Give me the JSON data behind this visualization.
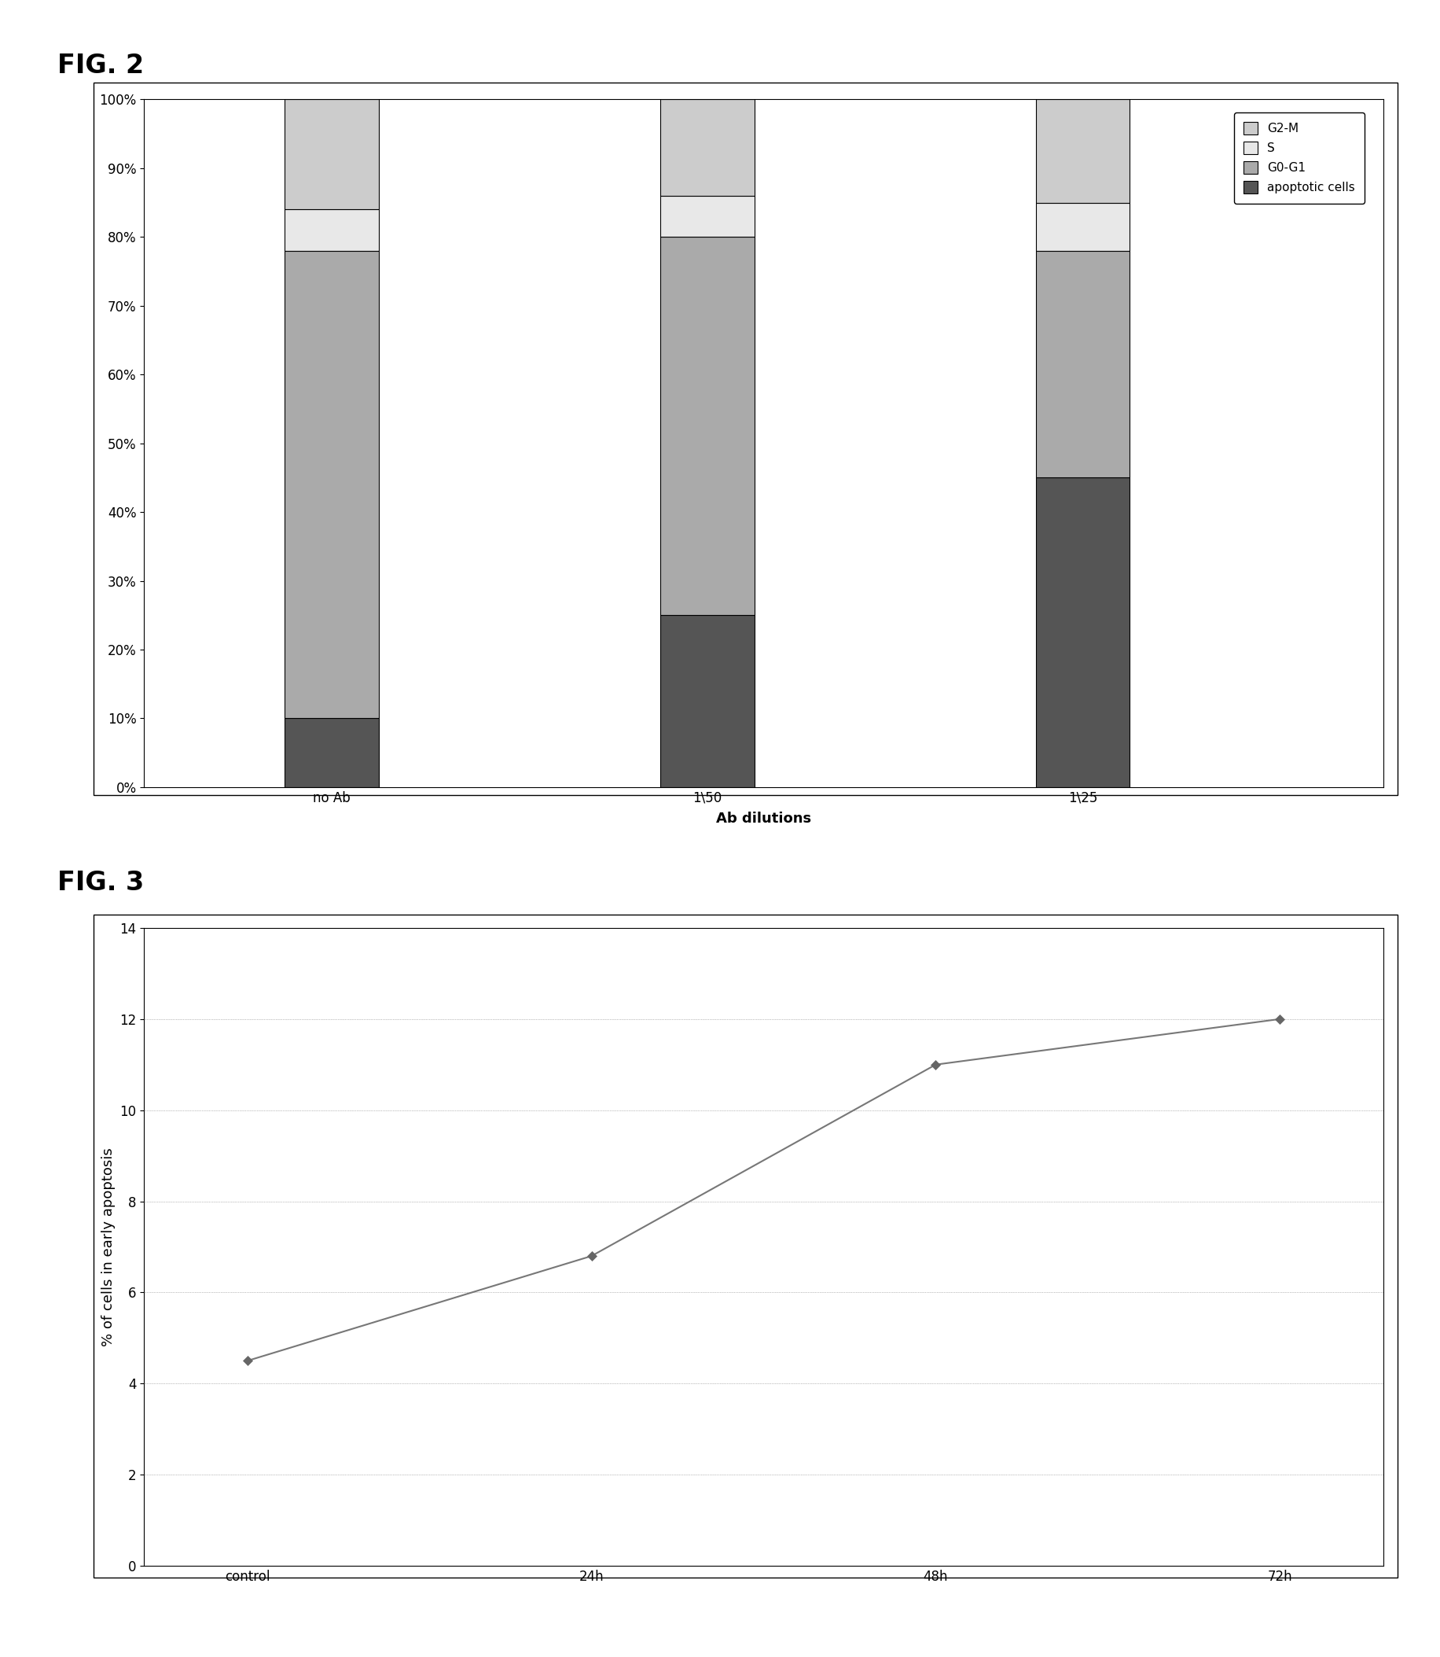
{
  "fig2": {
    "categories": [
      "no Ab",
      "1\\50",
      "1\\25"
    ],
    "apoptotic": [
      0.1,
      0.25,
      0.45
    ],
    "g0g1": [
      0.68,
      0.55,
      0.33
    ],
    "s": [
      0.06,
      0.06,
      0.07
    ],
    "g2m": [
      0.16,
      0.14,
      0.15
    ],
    "xlabel": "Ab dilutions",
    "colors": {
      "apoptotic": "#555555",
      "g0g1": "#aaaaaa",
      "s": "#e8e8e8",
      "g2m": "#cccccc"
    },
    "fig_label": "FIG. 2"
  },
  "fig3": {
    "x_labels": [
      "control",
      "24h",
      "48h",
      "72h"
    ],
    "y_values": [
      4.5,
      6.8,
      11.0,
      12.0
    ],
    "ylabel": "% of cells in early apoptosis",
    "ylim": [
      0,
      14
    ],
    "yticks": [
      0,
      2,
      4,
      6,
      8,
      10,
      12,
      14
    ],
    "fig_label": "FIG. 3",
    "line_color": "#777777",
    "marker_color": "#666666"
  },
  "background_color": "#ffffff",
  "fig_label_fontsize": 24,
  "axis_label_fontsize": 13,
  "tick_fontsize": 12
}
